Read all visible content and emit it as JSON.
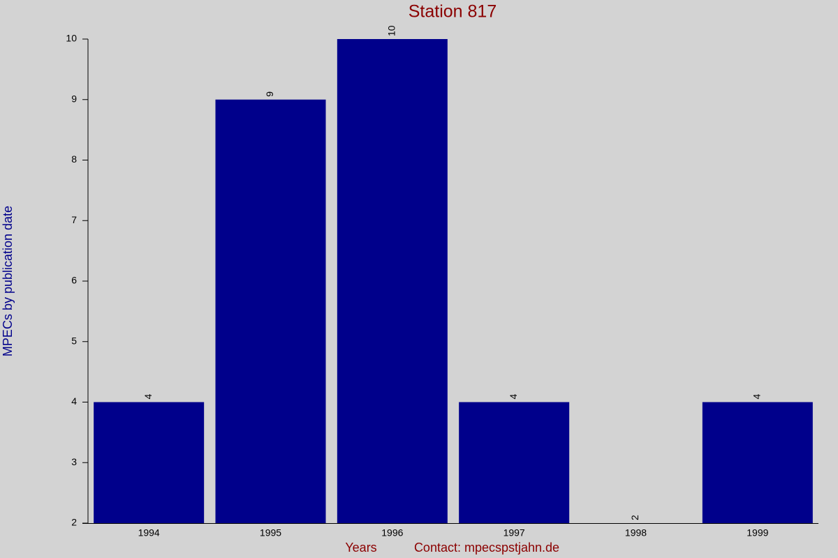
{
  "chart_data": {
    "type": "bar",
    "title": "Station 817",
    "ylabel": "MPECs by publication date",
    "xlabel": "Years",
    "footer": "Contact: mpecspstjahn.de",
    "categories": [
      "1994",
      "1995",
      "1996",
      "1997",
      "1998",
      "1999"
    ],
    "values": [
      4,
      9,
      10,
      4,
      2,
      4
    ],
    "color": "#00008b",
    "ylim": [
      2,
      10
    ],
    "yticks": [
      2,
      3,
      4,
      5,
      6,
      7,
      8,
      9,
      10
    ],
    "grid": false
  }
}
